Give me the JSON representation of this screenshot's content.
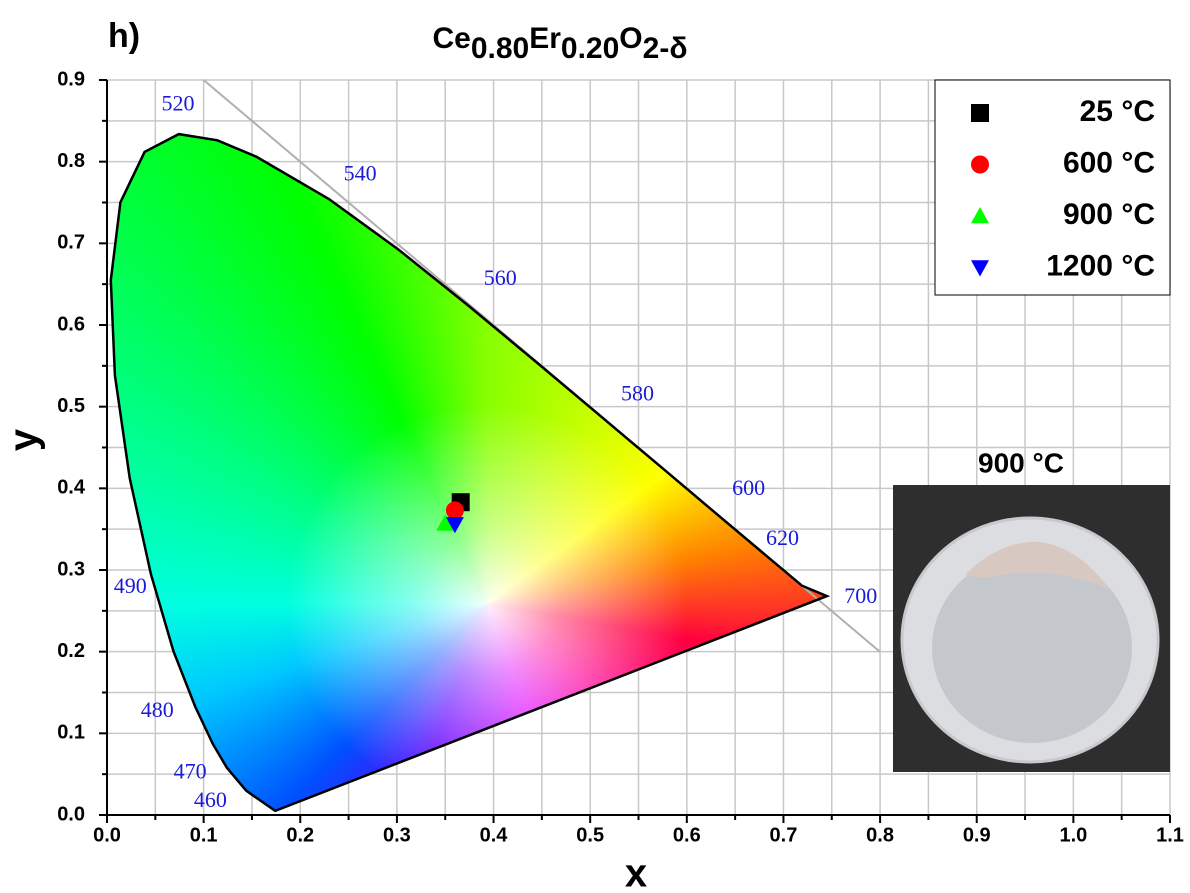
{
  "chart_data": {
    "type": "scatter",
    "panel_label": "h)",
    "title": [
      "Ce",
      "0.80",
      "Er",
      "0.20",
      "O",
      "2-δ"
    ],
    "xlabel": "x",
    "ylabel": "y",
    "xlim": [
      0,
      1.1
    ],
    "ylim": [
      0,
      0.9
    ],
    "xticks": [
      {
        "value": 0,
        "label": "0.0"
      },
      0.1,
      0.2,
      0.3,
      0.4,
      0.5,
      0.6,
      0.7,
      0.8,
      0.9,
      {
        "value": 1.0,
        "label": "1.0"
      },
      1.1
    ],
    "yticks": [
      {
        "value": 0,
        "label": "0.0"
      },
      0.1,
      0.2,
      0.3,
      0.4,
      0.5,
      0.6,
      0.7,
      0.8,
      0.9
    ],
    "grid": true,
    "minor_grid": true,
    "legend": "upper right",
    "series": [
      {
        "name": "25 °C",
        "color": "#000000",
        "marker": "square",
        "x": [
          0.366
        ],
        "values": [
          0.383
        ]
      },
      {
        "name": "600 °C",
        "color": "#ff0000",
        "marker": "circle",
        "x": [
          0.36
        ],
        "values": [
          0.373
        ]
      },
      {
        "name": "900 °C",
        "color": "#00ff00",
        "marker": "triangle-up",
        "x": [
          0.35
        ],
        "values": [
          0.357
        ]
      },
      {
        "name": "1200 °C",
        "color": "#0000ff",
        "marker": "triangle-down",
        "x": [
          0.36
        ],
        "values": [
          0.356
        ]
      }
    ],
    "spectral_locus": {
      "x": [
        0.1741,
        0.144,
        0.1241,
        0.1096,
        0.0913,
        0.0687,
        0.0454,
        0.0235,
        0.0082,
        0.0039,
        0.0139,
        0.0389,
        0.0743,
        0.1142,
        0.1547,
        0.2296,
        0.3016,
        0.3731,
        0.4441,
        0.5125,
        0.5752,
        0.627,
        0.6915,
        0.719,
        0.745
      ],
      "y": [
        0.005,
        0.0297,
        0.0578,
        0.0868,
        0.1327,
        0.2007,
        0.295,
        0.4127,
        0.5384,
        0.6548,
        0.7502,
        0.812,
        0.8338,
        0.8262,
        0.8059,
        0.7543,
        0.6923,
        0.6245,
        0.5547,
        0.4866,
        0.4242,
        0.3725,
        0.3083,
        0.2809,
        0.268
      ]
    },
    "wavelength_labels": [
      {
        "wavelength": 520,
        "x": 0.0735,
        "y": 0.869
      },
      {
        "wavelength": 540,
        "x": 0.262,
        "y": 0.783
      },
      {
        "wavelength": 560,
        "x": 0.407,
        "y": 0.655
      },
      {
        "wavelength": 580,
        "x": 0.549,
        "y": 0.514
      },
      {
        "wavelength": 600,
        "x": 0.664,
        "y": 0.398
      },
      {
        "wavelength": 620,
        "x": 0.699,
        "y": 0.337
      },
      {
        "wavelength": 700,
        "x": 0.78,
        "y": 0.266
      },
      {
        "wavelength": 490,
        "x": 0.024,
        "y": 0.278
      },
      {
        "wavelength": 480,
        "x": 0.052,
        "y": 0.126
      },
      {
        "wavelength": 470,
        "x": 0.086,
        "y": 0.051
      },
      {
        "wavelength": 460,
        "x": 0.107,
        "y": 0.016
      }
    ],
    "inset_caption": "900 °C"
  }
}
